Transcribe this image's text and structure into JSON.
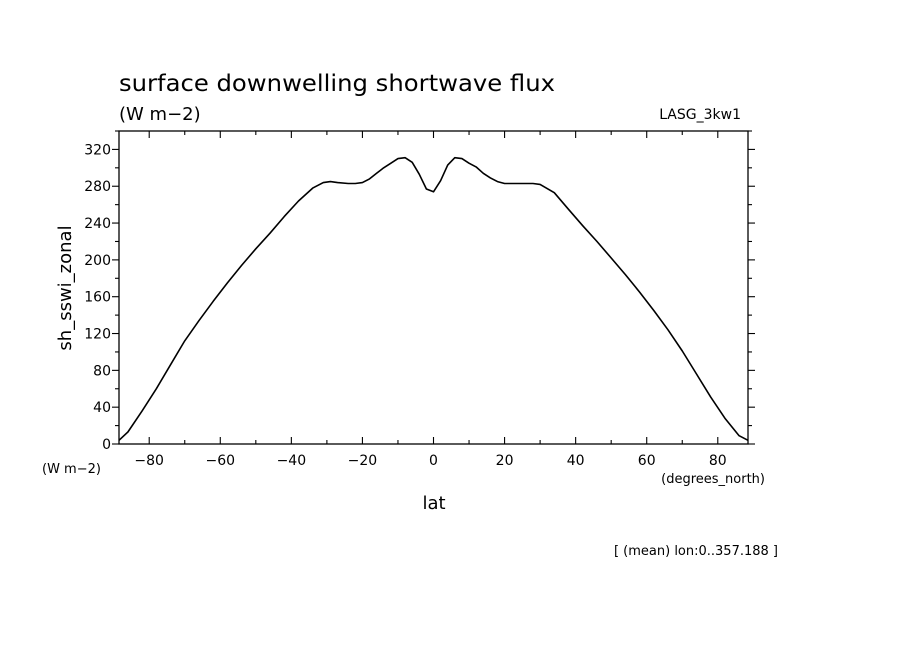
{
  "chart_data": {
    "type": "line",
    "title": "surface downwelling shortwave flux",
    "subtitle": "(W m−2)",
    "model_label": "LASG_3kw1",
    "xlabel": "lat",
    "ylabel": "sh_sswi_zonal",
    "x_units": "(degrees_north)",
    "y_units": "(W m−2)",
    "footnote": "[ (mean) lon:0..357.188 ]",
    "xlim": [
      -88.5,
      88.5
    ],
    "ylim": [
      0,
      340
    ],
    "x_ticks": [
      -80,
      -60,
      -40,
      -20,
      0,
      20,
      40,
      60,
      80
    ],
    "x_tick_labels": [
      "−80",
      "−60",
      "−40",
      "−20",
      "0",
      "20",
      "40",
      "60",
      "80"
    ],
    "y_ticks": [
      0,
      40,
      80,
      120,
      160,
      200,
      240,
      280,
      320
    ],
    "y_tick_labels": [
      "0",
      "40",
      "80",
      "120",
      "160",
      "200",
      "240",
      "280",
      "320"
    ],
    "x_minor_step": 10,
    "y_minor_step": 20,
    "grid": false,
    "line_color": "#000000",
    "series": [
      {
        "x": [
          -88.5,
          -86,
          -82,
          -78,
          -74,
          -70,
          -66,
          -62,
          -58,
          -54,
          -50,
          -46,
          -42,
          -38,
          -34,
          -31,
          -29,
          -27,
          -24,
          -22,
          -20,
          -18,
          -16,
          -14,
          -12,
          -10,
          -8,
          -6,
          -4,
          -2,
          0,
          2,
          4,
          6,
          8,
          10,
          12,
          14,
          16,
          18,
          20,
          22,
          24,
          26,
          28,
          30,
          34,
          38,
          42,
          46,
          50,
          54,
          58,
          62,
          66,
          70,
          74,
          78,
          82,
          86,
          88.5
        ],
        "y": [
          4,
          13,
          36,
          60,
          86,
          112,
          134,
          155,
          175,
          194,
          212,
          229,
          247,
          264,
          278,
          284,
          285,
          284,
          283,
          283,
          284,
          288,
          294,
          300,
          305,
          310,
          311,
          306,
          293,
          277,
          274,
          286,
          303,
          311,
          310,
          305,
          301,
          294,
          289,
          285,
          283,
          283,
          283,
          283,
          283,
          282,
          273,
          255,
          237,
          220,
          202,
          184,
          165,
          145,
          124,
          101,
          76,
          51,
          28,
          9,
          4
        ]
      }
    ]
  }
}
